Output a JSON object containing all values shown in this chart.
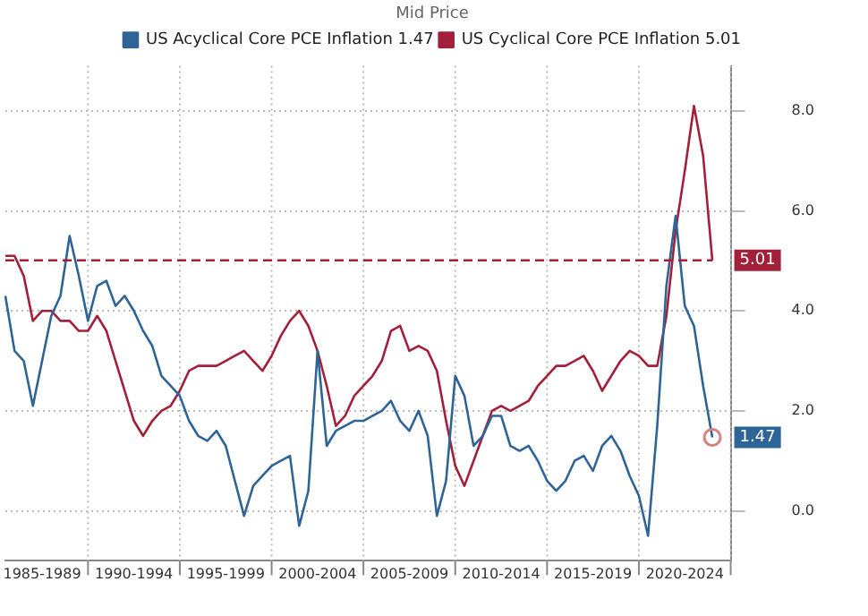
{
  "chart_data": {
    "type": "line",
    "legend_title": "Mid Price",
    "legend": "top",
    "grid": true,
    "marker": "none",
    "line_style": "solid",
    "categories": [
      null,
      null,
      null,
      null,
      "1985-1989",
      null,
      null,
      null,
      null,
      null,
      null,
      null,
      null,
      null,
      "1990-1994",
      null,
      null,
      null,
      null,
      null,
      null,
      null,
      null,
      null,
      "1995-1999",
      null,
      null,
      null,
      null,
      null,
      null,
      null,
      null,
      null,
      "2000-2004",
      null,
      null,
      null,
      null,
      null,
      null,
      null,
      null,
      null,
      "2005-2009",
      null,
      null,
      null,
      null,
      null,
      null,
      null,
      null,
      null,
      "2010-2014",
      null,
      null,
      null,
      null,
      null,
      null,
      null,
      null,
      null,
      "2015-2019",
      null,
      null,
      null,
      null,
      null,
      null,
      null,
      null,
      null,
      "2020-2024",
      null,
      null,
      null,
      null,
      null
    ],
    "ylim": [
      -1,
      8.9
    ],
    "yticks": [
      {
        "value": 0,
        "label": "0.0"
      },
      {
        "value": 2,
        "label": "2.0"
      },
      {
        "value": 4,
        "label": "4.0"
      },
      {
        "value": 6,
        "label": "6.0"
      },
      {
        "value": 8,
        "label": "8.0"
      }
    ],
    "ref_lines": [
      {
        "axis": "y",
        "value": 5.01,
        "label": "5.01",
        "color": "#a3203a",
        "line_style": "dashed"
      }
    ],
    "annotations": [
      {
        "text": "1.47",
        "y": 1.47
      }
    ],
    "series": [
      {
        "name": "US Acyclical Core PCE Inflation 1.47",
        "color": "#2e6496",
        "values": [
          4.3,
          3.2,
          3.0,
          2.1,
          3.0,
          3.9,
          4.3,
          5.5,
          4.7,
          3.8,
          4.5,
          4.6,
          4.1,
          4.3,
          4.0,
          3.6,
          3.3,
          2.7,
          2.5,
          2.3,
          1.8,
          1.5,
          1.4,
          1.6,
          1.3,
          0.6,
          -0.1,
          0.5,
          0.7,
          0.9,
          1.0,
          1.1,
          -0.3,
          0.4,
          3.2,
          1.3,
          1.6,
          1.7,
          1.8,
          1.8,
          1.9,
          2.0,
          2.2,
          1.8,
          1.6,
          2.0,
          1.5,
          -0.1,
          0.6,
          2.7,
          2.3,
          1.3,
          1.5,
          1.9,
          1.9,
          1.3,
          1.2,
          1.3,
          1.0,
          0.6,
          0.4,
          0.6,
          1.0,
          1.1,
          0.8,
          1.3,
          1.5,
          1.2,
          0.7,
          0.3,
          -0.5,
          1.7,
          4.5,
          5.9,
          4.1,
          3.7,
          2.5,
          1.47,
          null,
          null
        ]
      },
      {
        "name": "US Cyclical Core PCE Inflation 5.01",
        "color": "#a3203a",
        "values": [
          5.1,
          5.1,
          4.7,
          3.8,
          4.0,
          4.0,
          3.8,
          3.8,
          3.6,
          3.6,
          3.9,
          3.6,
          3.0,
          2.4,
          1.8,
          1.5,
          1.8,
          2.0,
          2.1,
          2.4,
          2.8,
          2.9,
          2.9,
          2.9,
          3.0,
          3.1,
          3.2,
          3.0,
          2.8,
          3.1,
          3.5,
          3.8,
          4.0,
          3.7,
          3.2,
          2.5,
          1.7,
          1.9,
          2.3,
          2.5,
          2.7,
          3.0,
          3.6,
          3.7,
          3.2,
          3.3,
          3.2,
          2.8,
          1.8,
          0.9,
          0.5,
          1.0,
          1.5,
          2.0,
          2.1,
          2.0,
          2.1,
          2.2,
          2.5,
          2.7,
          2.9,
          2.9,
          3.0,
          3.1,
          2.8,
          2.4,
          2.7,
          3.0,
          3.2,
          3.1,
          2.9,
          2.9,
          3.9,
          5.6,
          6.8,
          8.1,
          7.1,
          5.01,
          null,
          null
        ]
      }
    ]
  }
}
